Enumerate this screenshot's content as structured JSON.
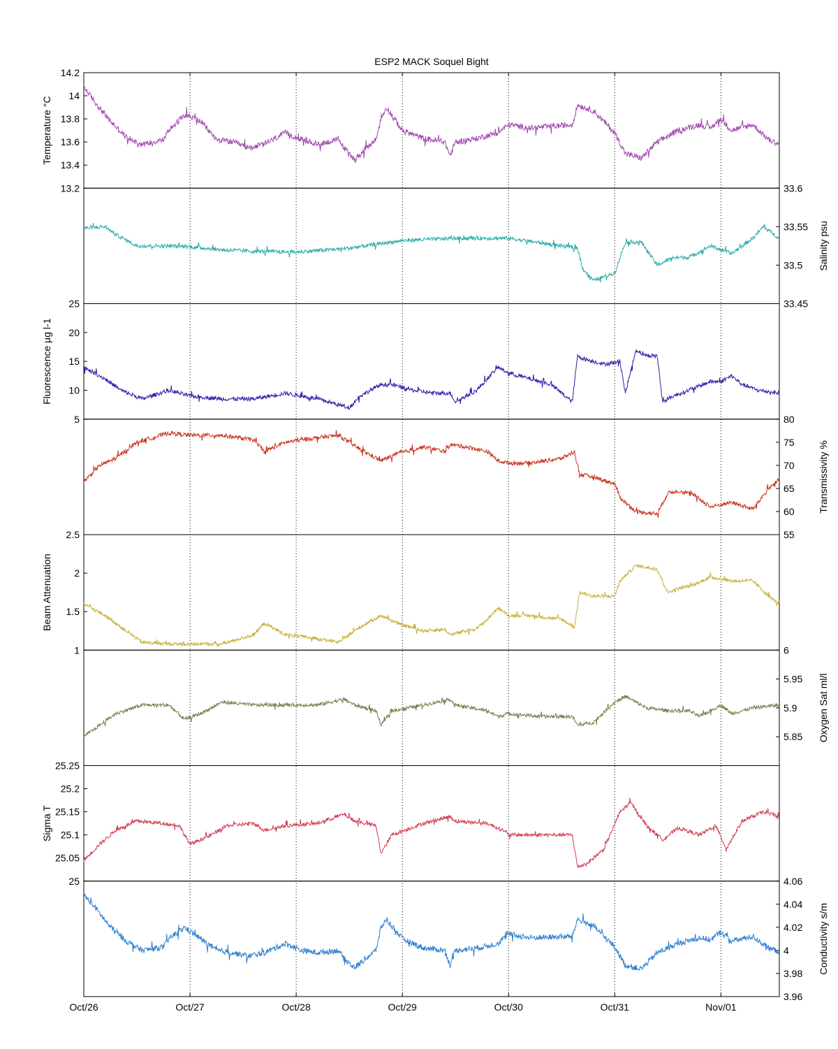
{
  "chart_data": {
    "type": "line",
    "title": "ESP2 MACK  Soquel Bight",
    "x_tick_labels": [
      "Oct/26",
      "Oct/27",
      "Oct/28",
      "Oct/29",
      "Oct/30",
      "Oct/31",
      "Nov/01"
    ],
    "x_range_days": [
      0,
      6.55
    ],
    "vertical_grid": "dotted at each day",
    "panels": [
      {
        "name": "temperature",
        "ylabel": "Temperature °C",
        "axis_side": "left",
        "ylim": [
          13.2,
          14.2
        ],
        "ticks": [
          13.2,
          13.4,
          13.6,
          13.8,
          14,
          14.2
        ],
        "tick_labels": [
          "13.2",
          "13.4",
          "13.6",
          "13.8",
          "14",
          "14.2"
        ],
        "hidden_tick_labels": [],
        "color": "#a04aae",
        "noise": 0.025,
        "x": [
          0,
          0.1,
          0.25,
          0.4,
          0.55,
          0.75,
          0.8,
          0.95,
          1.1,
          1.25,
          1.4,
          1.55,
          1.7,
          1.9,
          2.05,
          2.2,
          2.4,
          2.45,
          2.55,
          2.75,
          2.8,
          2.85,
          3.0,
          3.2,
          3.4,
          3.45,
          3.5,
          3.7,
          3.9,
          4.0,
          4.2,
          4.6,
          4.65,
          4.8,
          5.0,
          5.1,
          5.25,
          5.4,
          5.6,
          5.8,
          5.9,
          6.0,
          6.1,
          6.3,
          6.45,
          6.55
        ],
        "y": [
          14.08,
          13.95,
          13.78,
          13.64,
          13.58,
          13.62,
          13.7,
          13.84,
          13.78,
          13.62,
          13.6,
          13.55,
          13.58,
          13.68,
          13.62,
          13.58,
          13.62,
          13.55,
          13.45,
          13.62,
          13.8,
          13.9,
          13.7,
          13.63,
          13.6,
          13.48,
          13.6,
          13.63,
          13.68,
          13.75,
          13.72,
          13.75,
          13.92,
          13.87,
          13.68,
          13.5,
          13.46,
          13.6,
          13.7,
          13.75,
          13.72,
          13.8,
          13.7,
          13.75,
          13.62,
          13.58
        ]
      },
      {
        "name": "salinity",
        "ylabel": "Salinity psu",
        "axis_side": "right",
        "ylim": [
          33.45,
          33.6
        ],
        "ticks": [
          33.45,
          33.5,
          33.55,
          33.6
        ],
        "tick_labels": [
          "33.45",
          "33.5",
          "33.55",
          "33.6"
        ],
        "hidden_tick_labels": [],
        "color": "#2aaaaa",
        "noise": 0.0025,
        "x": [
          0,
          0.2,
          0.3,
          0.5,
          0.8,
          1.0,
          1.3,
          1.6,
          2.0,
          2.5,
          3.0,
          3.5,
          4.0,
          4.5,
          4.65,
          4.7,
          4.8,
          5.0,
          5.1,
          5.25,
          5.4,
          5.55,
          5.7,
          5.9,
          6.1,
          6.3,
          6.4,
          6.55
        ],
        "y": [
          33.548,
          33.55,
          33.54,
          33.525,
          33.525,
          33.524,
          33.52,
          33.518,
          33.517,
          33.522,
          33.532,
          33.535,
          33.535,
          33.525,
          33.522,
          33.495,
          33.48,
          33.49,
          33.53,
          33.53,
          33.5,
          33.51,
          33.51,
          33.525,
          33.515,
          33.535,
          33.55,
          33.535
        ]
      },
      {
        "name": "fluorescence",
        "ylabel": "Fluorescence µg l-1",
        "axis_side": "left",
        "ylim": [
          5,
          25
        ],
        "ticks": [
          5,
          10,
          15,
          20,
          25
        ],
        "tick_labels": [
          "5",
          "10",
          "15",
          "20",
          "25"
        ],
        "hidden_tick_labels": [],
        "color": "#2a1fa5",
        "noise": 0.35,
        "x": [
          0,
          0.2,
          0.35,
          0.55,
          0.8,
          1.0,
          1.3,
          1.6,
          1.9,
          2.2,
          2.5,
          2.6,
          2.8,
          2.9,
          3.1,
          3.3,
          3.45,
          3.5,
          3.7,
          3.9,
          4.0,
          4.2,
          4.4,
          4.6,
          4.65,
          4.7,
          4.9,
          5.05,
          5.1,
          5.2,
          5.3,
          5.4,
          5.45,
          5.55,
          5.7,
          5.9,
          6.0,
          6.1,
          6.2,
          6.35,
          6.55
        ],
        "y": [
          14,
          12,
          10,
          8.5,
          10,
          9,
          8.5,
          8.5,
          9.5,
          8.5,
          7,
          9,
          11,
          11,
          10,
          9.5,
          9.5,
          8,
          10,
          14,
          13,
          12,
          11,
          8,
          16,
          15.5,
          14.5,
          15,
          9.5,
          17,
          16,
          16,
          8,
          9,
          10,
          11.5,
          11.5,
          12.5,
          11,
          10,
          9.5
        ]
      },
      {
        "name": "transmissivity",
        "ylabel": "Transmissivity %",
        "axis_side": "right",
        "ylim": [
          55,
          80
        ],
        "ticks": [
          55,
          60,
          65,
          70,
          75,
          80
        ],
        "tick_labels": [
          "55",
          "60",
          "65",
          "70",
          "75",
          "80"
        ],
        "hidden_tick_labels": [],
        "color": "#c8331f",
        "noise": 0.45,
        "x": [
          0,
          0.15,
          0.3,
          0.5,
          0.8,
          1.0,
          1.3,
          1.6,
          1.7,
          1.9,
          2.2,
          2.4,
          2.6,
          2.8,
          2.95,
          3.2,
          3.4,
          3.45,
          3.6,
          3.8,
          3.9,
          4.0,
          4.2,
          4.5,
          4.62,
          4.67,
          4.8,
          5.0,
          5.05,
          5.2,
          5.4,
          5.5,
          5.6,
          5.75,
          5.9,
          6.1,
          6.3,
          6.45,
          6.55
        ],
        "y": [
          66.5,
          70,
          71.5,
          75,
          77,
          76.5,
          76.5,
          75.5,
          73,
          75,
          76,
          76.5,
          73.5,
          71,
          72.5,
          74,
          73,
          74.5,
          74,
          73,
          71,
          70.5,
          70.5,
          71.5,
          73,
          68,
          67.5,
          66,
          63,
          60,
          59.5,
          64,
          64.5,
          63.5,
          61,
          62,
          60.5,
          65,
          67
        ]
      },
      {
        "name": "beam-attenuation",
        "ylabel": "Beam Attenuation",
        "axis_side": "left",
        "ylim": [
          1,
          2.5
        ],
        "ticks": [
          1,
          1.5,
          2,
          2.5
        ],
        "tick_labels": [
          "1",
          "1.5",
          "2",
          "2.5"
        ],
        "hidden_tick_labels": [],
        "color": "#c7ad35",
        "noise": 0.022,
        "x": [
          0,
          0.2,
          0.35,
          0.55,
          0.8,
          1.0,
          1.3,
          1.6,
          1.7,
          1.9,
          2.2,
          2.4,
          2.6,
          2.8,
          2.95,
          3.2,
          3.4,
          3.45,
          3.7,
          3.8,
          3.9,
          4.0,
          4.2,
          4.5,
          4.62,
          4.67,
          4.8,
          5.0,
          5.05,
          5.2,
          5.4,
          5.5,
          5.6,
          5.75,
          5.9,
          6.1,
          6.3,
          6.45,
          6.55
        ],
        "y": [
          1.6,
          1.45,
          1.3,
          1.1,
          1.08,
          1.08,
          1.08,
          1.2,
          1.35,
          1.2,
          1.15,
          1.1,
          1.3,
          1.45,
          1.35,
          1.25,
          1.27,
          1.2,
          1.28,
          1.4,
          1.55,
          1.45,
          1.45,
          1.4,
          1.3,
          1.75,
          1.7,
          1.7,
          1.9,
          2.1,
          2.05,
          1.75,
          1.8,
          1.85,
          1.95,
          1.9,
          1.9,
          1.7,
          1.6
        ]
      },
      {
        "name": "oxygen-sat",
        "ylabel": "Oxygen Sat ml/l",
        "axis_side": "right",
        "ylim": [
          5.8,
          6
        ],
        "ticks": [
          5.85,
          5.9,
          5.95,
          6
        ],
        "tick_labels": [
          "5.85",
          "5.9",
          "5.95",
          "6"
        ],
        "hidden_tick_labels": [],
        "color": "#7a7a47",
        "noise": 0.003,
        "x": [
          0,
          0.15,
          0.3,
          0.55,
          0.8,
          0.95,
          1.1,
          1.3,
          1.6,
          1.9,
          2.2,
          2.45,
          2.55,
          2.75,
          2.8,
          2.9,
          3.2,
          3.45,
          3.5,
          3.8,
          3.9,
          4.0,
          4.3,
          4.6,
          4.65,
          4.8,
          5.0,
          5.1,
          5.3,
          5.5,
          5.7,
          5.8,
          5.9,
          6.0,
          6.1,
          6.3,
          6.55
        ],
        "y": [
          5.85,
          5.87,
          5.89,
          5.905,
          5.905,
          5.88,
          5.89,
          5.91,
          5.905,
          5.905,
          5.905,
          5.915,
          5.905,
          5.895,
          5.87,
          5.895,
          5.905,
          5.915,
          5.905,
          5.895,
          5.885,
          5.89,
          5.885,
          5.885,
          5.87,
          5.875,
          5.91,
          5.92,
          5.9,
          5.895,
          5.895,
          5.885,
          5.895,
          5.905,
          5.89,
          5.9,
          5.905
        ]
      },
      {
        "name": "sigma-t",
        "ylabel": "Sigma T",
        "axis_side": "left",
        "ylim": [
          25,
          25.25
        ],
        "ticks": [
          25,
          25.05,
          25.1,
          25.15,
          25.2,
          25.25
        ],
        "tick_labels": [
          "25",
          "25.05",
          "25.1",
          "25.15",
          "25.2",
          "25.25"
        ],
        "hidden_tick_labels": [],
        "color": "#d03a52",
        "noise": 0.004,
        "x": [
          0,
          0.15,
          0.3,
          0.5,
          0.75,
          0.9,
          1.0,
          1.2,
          1.35,
          1.6,
          1.7,
          1.9,
          2.2,
          2.45,
          2.55,
          2.75,
          2.8,
          2.9,
          3.2,
          3.45,
          3.5,
          3.8,
          3.95,
          4.0,
          4.3,
          4.6,
          4.65,
          4.75,
          4.9,
          5.05,
          5.15,
          5.3,
          5.45,
          5.6,
          5.8,
          5.95,
          6.05,
          6.2,
          6.4,
          6.55
        ],
        "y": [
          25.045,
          25.08,
          25.11,
          25.13,
          25.125,
          25.12,
          25.08,
          25.1,
          25.12,
          25.125,
          25.11,
          25.12,
          25.125,
          25.145,
          25.13,
          25.12,
          25.06,
          25.1,
          25.125,
          25.14,
          25.13,
          25.125,
          25.11,
          25.1,
          25.1,
          25.1,
          25.03,
          25.04,
          25.07,
          25.15,
          25.17,
          25.12,
          25.09,
          25.115,
          25.1,
          25.12,
          25.07,
          25.13,
          25.15,
          25.14
        ]
      },
      {
        "name": "conductivity",
        "ylabel": "Conductivity s/m",
        "axis_side": "right",
        "ylim": [
          3.96,
          4.06
        ],
        "ticks": [
          3.96,
          3.98,
          4,
          4.02,
          4.04,
          4.06
        ],
        "tick_labels": [
          "3.96",
          "3.98",
          "4",
          "4.02",
          "4.04",
          "4.06"
        ],
        "hidden_tick_labels": [],
        "color": "#2f7fd0",
        "noise": 0.0025,
        "x": [
          0,
          0.1,
          0.25,
          0.4,
          0.55,
          0.75,
          0.8,
          0.95,
          1.1,
          1.25,
          1.4,
          1.55,
          1.7,
          1.9,
          2.05,
          2.2,
          2.4,
          2.45,
          2.55,
          2.75,
          2.8,
          2.85,
          3.0,
          3.2,
          3.4,
          3.45,
          3.5,
          3.7,
          3.9,
          4.0,
          4.2,
          4.6,
          4.65,
          4.8,
          5.0,
          5.1,
          5.25,
          5.4,
          5.6,
          5.8,
          5.9,
          6.0,
          6.1,
          6.3,
          6.45,
          6.55
        ],
        "y": [
          4.048,
          4.038,
          4.02,
          4.008,
          4.0,
          4.003,
          4.01,
          4.02,
          4.01,
          4.0,
          3.998,
          3.995,
          3.998,
          4.006,
          4.0,
          3.998,
          4.0,
          3.993,
          3.985,
          4.0,
          4.02,
          4.027,
          4.01,
          4.002,
          4.0,
          3.987,
          4.0,
          4.002,
          4.006,
          4.014,
          4.011,
          4.012,
          4.027,
          4.021,
          4.003,
          3.987,
          3.984,
          3.998,
          4.006,
          4.011,
          4.009,
          4.016,
          4.008,
          4.012,
          4.002,
          3.999
        ]
      }
    ]
  }
}
